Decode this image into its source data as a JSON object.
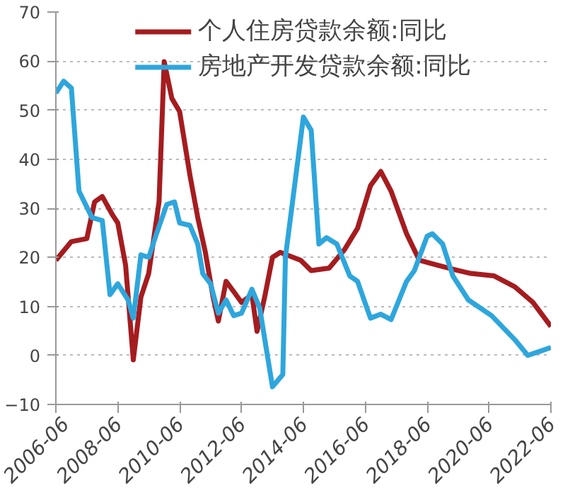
{
  "chart_data": {
    "type": "line",
    "xlim": [
      "2006-06",
      "2022-06"
    ],
    "xticks": [
      "2006-06",
      "2008-06",
      "2010-06",
      "2012-06",
      "2014-06",
      "2016-06",
      "2018-06",
      "2020-06",
      "2022-06"
    ],
    "ylim": [
      -10,
      70
    ],
    "yticks": [
      -10,
      0,
      10,
      20,
      30,
      40,
      50,
      60,
      70
    ],
    "grid": "y",
    "legend": "top",
    "series": [
      {
        "name": "个人住房贷款余额:同比",
        "color": "#a51c1f",
        "x": [
          "2006-06",
          "2006-12",
          "2007-06",
          "2007-09",
          "2007-12",
          "2008-04",
          "2008-06",
          "2008-09",
          "2008-12",
          "2009-03",
          "2009-06",
          "2009-10",
          "2009-12",
          "2010-03",
          "2010-06",
          "2010-10",
          "2011-01",
          "2011-04",
          "2011-07",
          "2011-09",
          "2011-12",
          "2012-03",
          "2012-06",
          "2012-10",
          "2012-12",
          "2013-03",
          "2013-06",
          "2013-09",
          "2014-05",
          "2014-09",
          "2015-04",
          "2015-10",
          "2016-03",
          "2016-08",
          "2016-12",
          "2017-04",
          "2017-10",
          "2018-03",
          "2018-10",
          "2019-06",
          "2019-11",
          "2020-08",
          "2021-04",
          "2021-11",
          "2022-06"
        ],
        "values": [
          19.4,
          23.2,
          23.8,
          31.3,
          32.4,
          28.6,
          27,
          18.4,
          -0.9,
          11.9,
          16.7,
          31.3,
          59.9,
          52.4,
          49.7,
          36.7,
          28.1,
          21,
          11.9,
          7,
          15.1,
          13,
          10.8,
          12.4,
          4.9,
          11.9,
          20.0,
          21.0,
          19.4,
          17.3,
          17.8,
          21.6,
          25.9,
          34.6,
          37.5,
          33.5,
          24.8,
          19.4,
          18.4,
          17.3,
          16.7,
          16.2,
          14,
          10.8,
          5.9
        ]
      },
      {
        "name": "房地产开发贷款余额:同比",
        "color": "#2ea6dc",
        "x": [
          "2006-06",
          "2006-09",
          "2006-12",
          "2007-03",
          "2007-08",
          "2007-12",
          "2008-03",
          "2008-06",
          "2008-10",
          "2008-12",
          "2009-03",
          "2009-06",
          "2009-09",
          "2010-01",
          "2010-04",
          "2010-06",
          "2010-10",
          "2011-01",
          "2011-03",
          "2011-06",
          "2011-09",
          "2011-12",
          "2012-03",
          "2012-06",
          "2012-10",
          "2013-01",
          "2013-06",
          "2013-10",
          "2013-11",
          "2014-06",
          "2014-09",
          "2014-12",
          "2015-03",
          "2015-07",
          "2015-12",
          "2016-03",
          "2016-08",
          "2016-12",
          "2017-04",
          "2017-10",
          "2018-01",
          "2018-06",
          "2018-08",
          "2018-12",
          "2019-04",
          "2019-10",
          "2020-07",
          "2021-04",
          "2021-09",
          "2022-06"
        ],
        "values": [
          53.5,
          55.9,
          54.5,
          33.5,
          28.1,
          27.5,
          12.4,
          14.6,
          11.3,
          7.6,
          20.5,
          20.0,
          24.8,
          30.8,
          31.3,
          27.0,
          26.5,
          22.7,
          16.7,
          14.6,
          8.6,
          11.3,
          8.1,
          8.6,
          13.5,
          9.7,
          -6.4,
          -3.9,
          20.0,
          48.6,
          45.9,
          22.7,
          24.0,
          22.7,
          16.2,
          15.1,
          7.6,
          8.4,
          7.3,
          15.1,
          17.3,
          24.3,
          24.8,
          22.7,
          16.2,
          11.3,
          8.1,
          3.2,
          0,
          1.6
        ]
      }
    ]
  }
}
